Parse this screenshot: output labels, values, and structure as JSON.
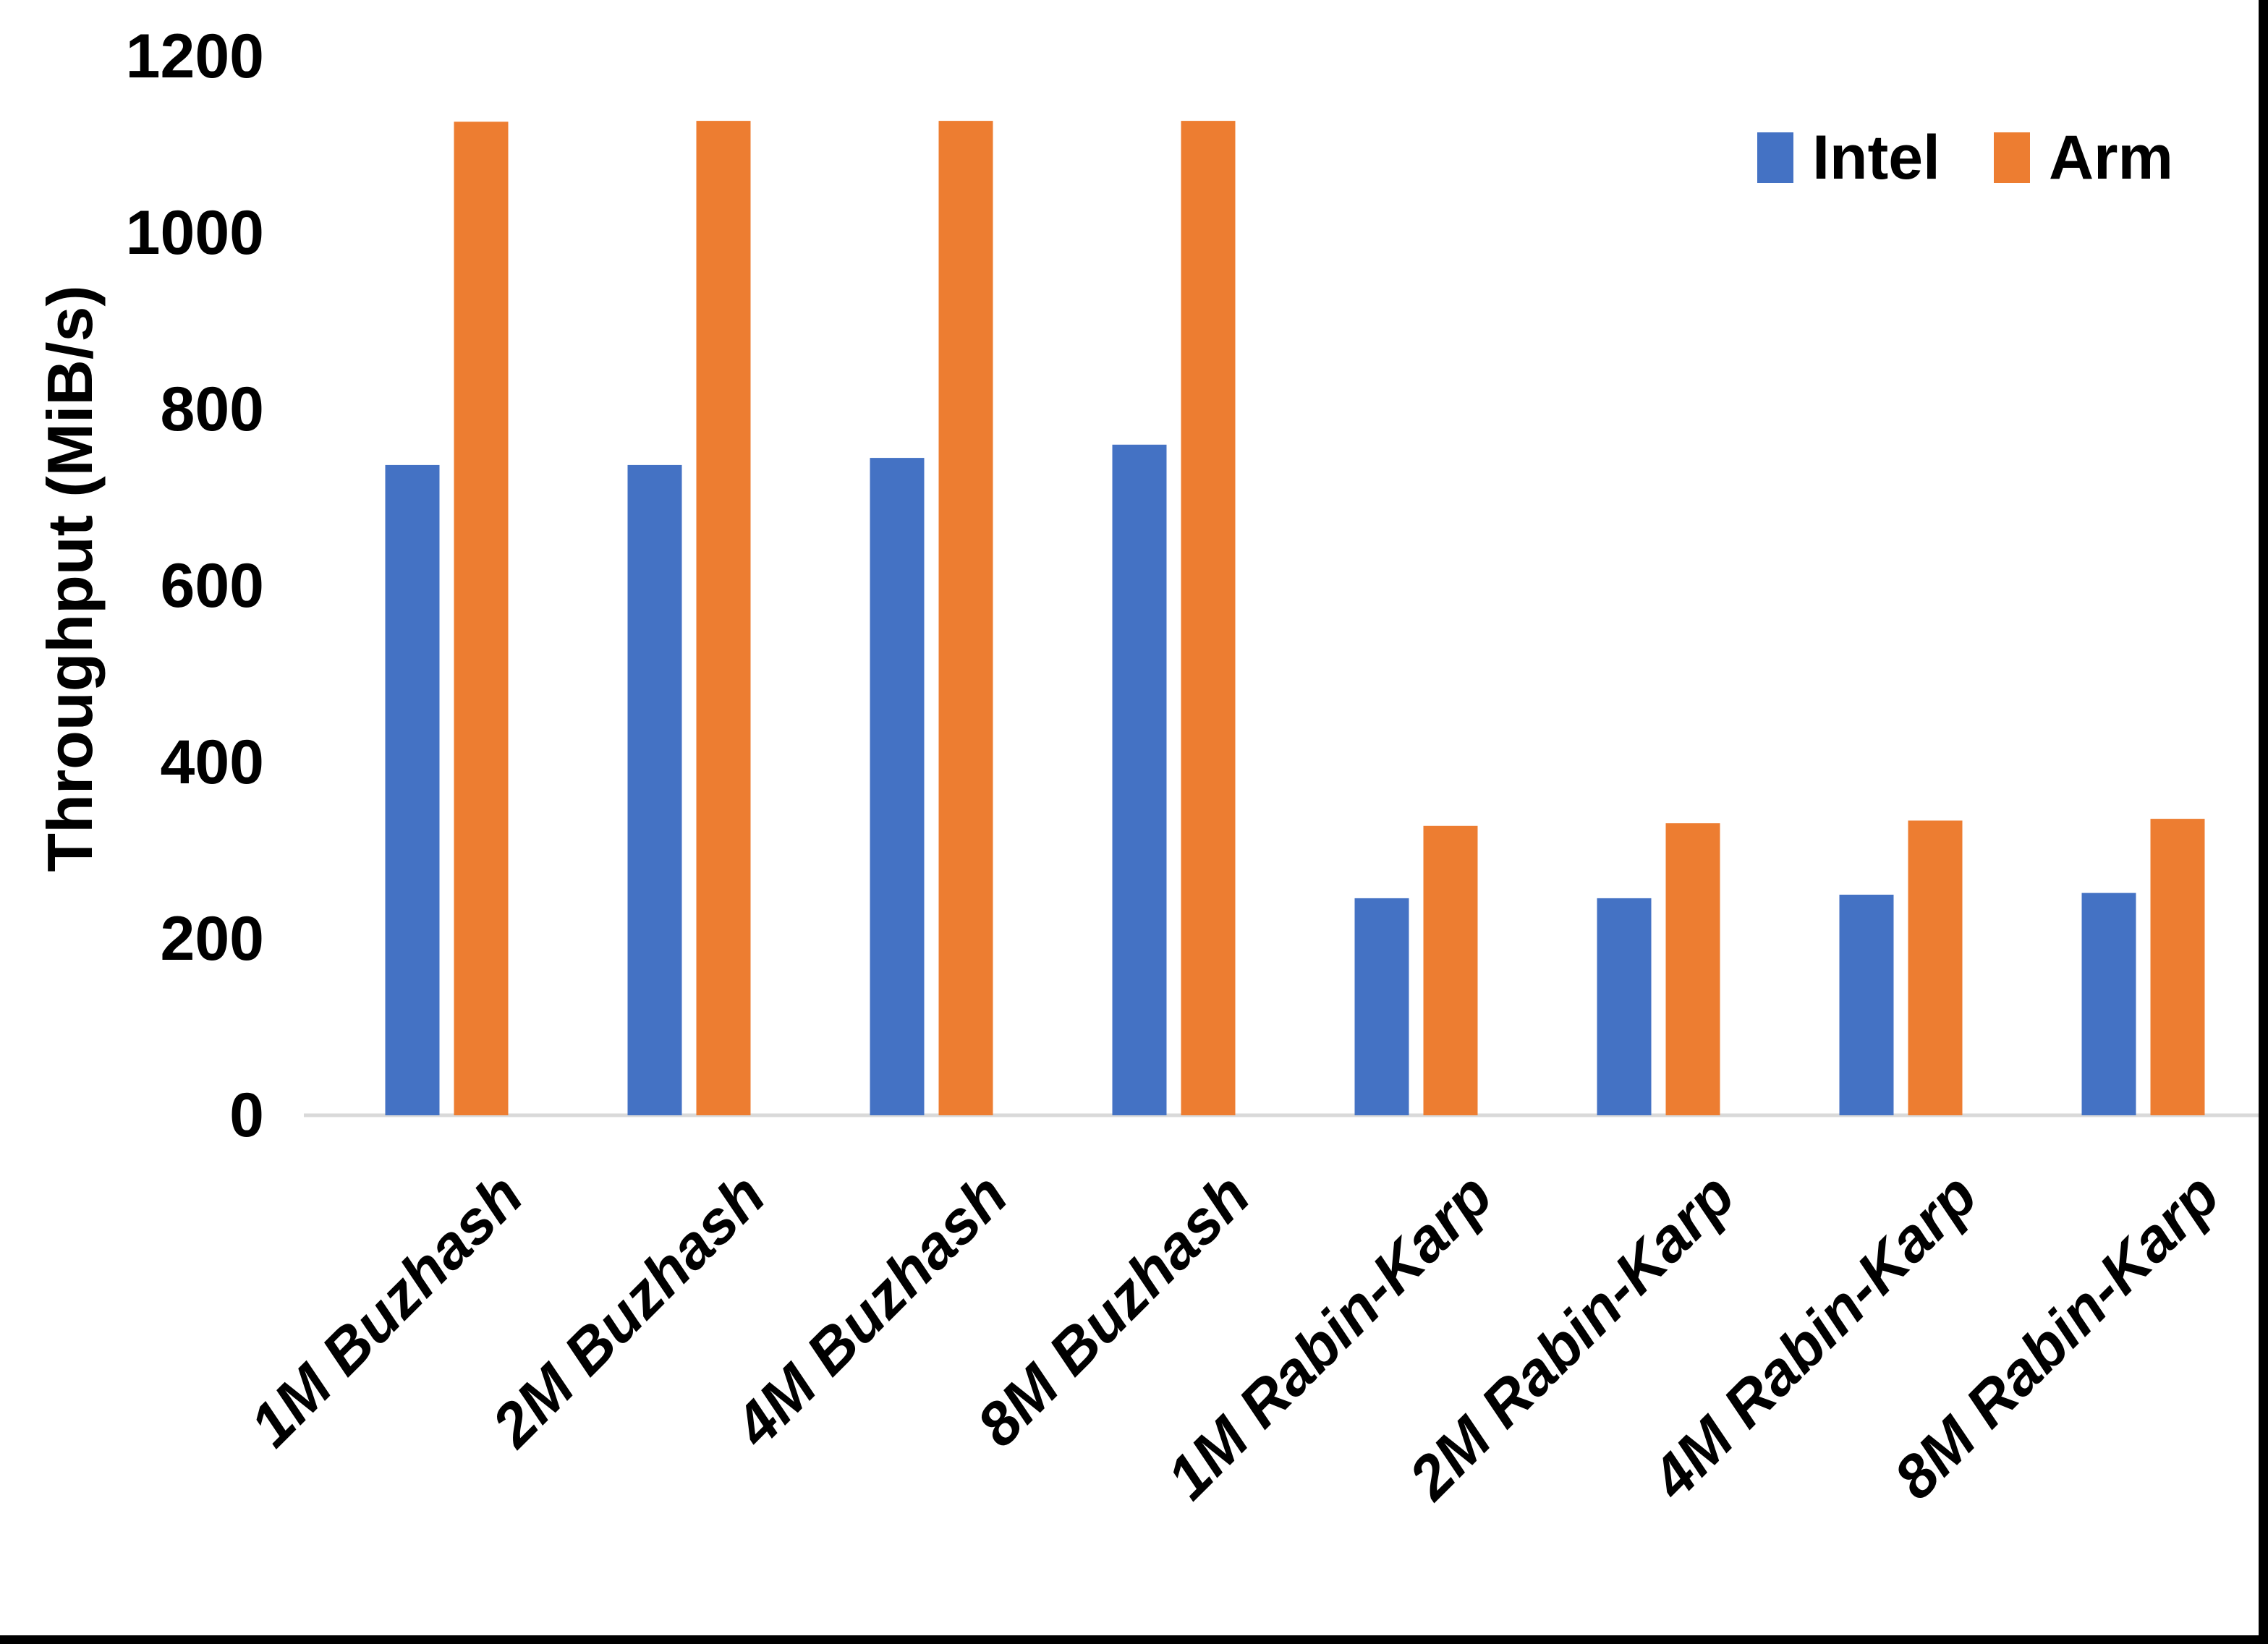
{
  "chart_data": {
    "type": "bar",
    "title": "",
    "xlabel": "",
    "ylabel": "Throughput (MiB/s)",
    "categories": [
      "1M Buzhash",
      "2M Buzhash",
      "4M Buzhash",
      "8M Buzhash",
      "1M Rabin-Karp",
      "2M Rabin-Karp",
      "4M Rabin-Karp",
      "8M Rabin-Karp"
    ],
    "series": [
      {
        "name": "Intel",
        "color": "#4472C4",
        "values": [
          737,
          737,
          745,
          760,
          246,
          246,
          250,
          252
        ]
      },
      {
        "name": "Arm",
        "color": "#ED7D31",
        "values": [
          1126,
          1127,
          1127,
          1127,
          328,
          331,
          334,
          336
        ]
      }
    ],
    "ylim": [
      0,
      1200
    ],
    "yticks": [
      0,
      200,
      400,
      600,
      800,
      1000,
      1200
    ],
    "grid": false,
    "legend_position": "top-right"
  },
  "colors": {
    "intel_blue": "#4472C4",
    "arm_orange": "#ED7D31",
    "axis_line": "#D9D9D9",
    "text": "#000000",
    "screenshot_edge": "#000000"
  }
}
